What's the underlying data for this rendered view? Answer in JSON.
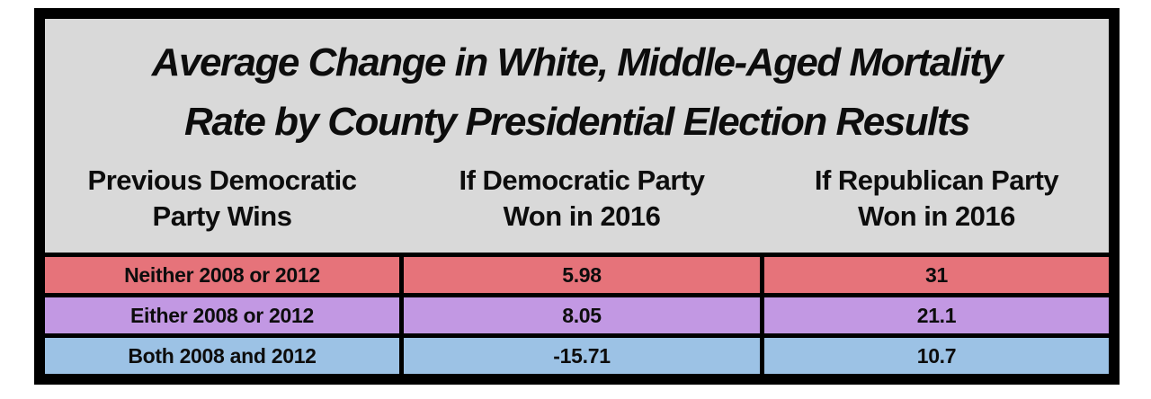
{
  "figure": {
    "title_line1": "Average Change in White, Middle-Aged Mortality",
    "title_line2": "Rate by County Presidential Election Results",
    "columns": [
      {
        "line1": "Previous Democratic",
        "line2": "Party Wins"
      },
      {
        "line1": "If Democratic Party",
        "line2": "Won in 2016"
      },
      {
        "line1": "If Republican Party",
        "line2": "Won in 2016"
      }
    ],
    "rows": [
      {
        "label": "Neither 2008 or 2012",
        "dem_value": "5.98",
        "rep_value": "31",
        "color": "#e6737a"
      },
      {
        "label": "Either 2008 or 2012",
        "dem_value": "8.05",
        "rep_value": "21.1",
        "color": "#c298e3"
      },
      {
        "label": "Both 2008 and 2012",
        "dem_value": "-15.71",
        "rep_value": "10.7",
        "color": "#9cc2e5"
      }
    ],
    "colors": {
      "background": "#d9d9d9",
      "frame": "#000000",
      "text": "#0d0d0d",
      "row_neither": "#e6737a",
      "row_either": "#c298e3",
      "row_both": "#9cc2e5"
    }
  },
  "chart_data": {
    "type": "table",
    "title": "Average Change in White, Middle-Aged Mortality Rate by County Presidential Election Results",
    "columns": [
      "Previous Democratic Party Wins",
      "If Democratic Party Won in 2016",
      "If Republican Party Won in 2016"
    ],
    "rows": [
      [
        "Neither 2008 or 2012",
        5.98,
        31
      ],
      [
        "Either 2008 or 2012",
        8.05,
        21.1
      ],
      [
        "Both 2008 and 2012",
        -15.71,
        10.7
      ]
    ],
    "row_colors": [
      "#e6737a",
      "#c298e3",
      "#9cc2e5"
    ],
    "layout": "title above three-column table; colored data rows separated by black rules inside a thick black frame on gray background"
  }
}
